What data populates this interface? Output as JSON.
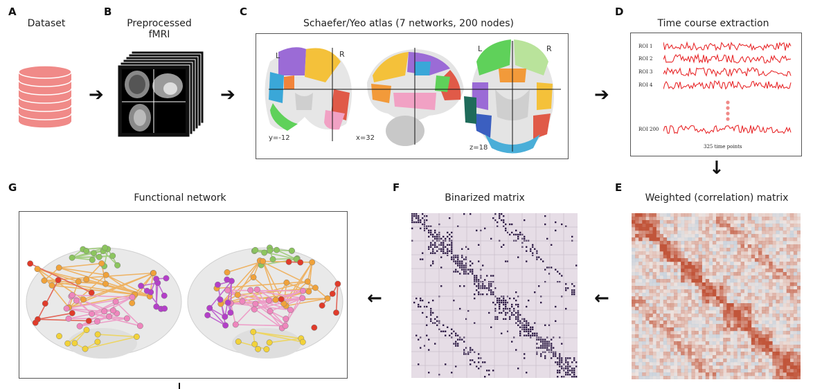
{
  "panels": {
    "A": {
      "letter": "A",
      "title": "Dataset"
    },
    "B": {
      "letter": "B",
      "title": "Preprocessed fMRI"
    },
    "C": {
      "letter": "C",
      "title": "Schaefer/Yeo atlas (7 networks, 200 nodes)",
      "coords": [
        "y=-12",
        "x=32",
        "z=18"
      ],
      "left": "L",
      "right": "R"
    },
    "D": {
      "letter": "D",
      "title": "Time course extraction",
      "rois": [
        "ROI 1",
        "ROI 2",
        "ROI 3",
        "ROI 4",
        "ROI 200"
      ],
      "time_points": "325 time points"
    },
    "E": {
      "letter": "E",
      "title": "Weighted (correlation) matrix"
    },
    "F": {
      "letter": "F",
      "title": "Binarized matrix"
    },
    "G": {
      "letter": "G",
      "title": "Functional network"
    }
  },
  "arrows": {
    "right": "➔",
    "down": "↓",
    "left": "←"
  },
  "colors": {
    "dataset": "#f08a88",
    "timecourse": "#e8282a",
    "binarized_bg": "#e6dde6",
    "binarized_dot": "#2d1b45",
    "corr_pos": "#c1553a",
    "corr_neg": "#8fb7d6",
    "node_green": "#8cc55e",
    "node_orange": "#f0a23a",
    "node_pink": "#ef86bd",
    "node_purple": "#b43fc9",
    "node_red": "#e03b2a",
    "node_yellow": "#f2d23a"
  }
}
